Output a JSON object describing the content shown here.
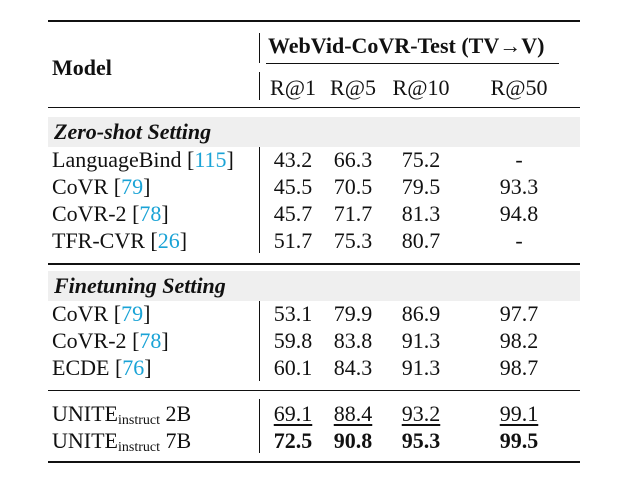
{
  "header": {
    "model_label": "Model",
    "benchmark": "WebVid-CoVR-Test (TV→V)",
    "metrics": [
      "R@1",
      "R@5",
      "R@10",
      "R@50"
    ]
  },
  "sections": [
    {
      "title": "Zero-shot Setting",
      "rows": [
        {
          "name": "LanguageBind",
          "cite": "115",
          "values": [
            "43.2",
            "66.3",
            "75.2",
            "-"
          ]
        },
        {
          "name": "CoVR",
          "cite": "79",
          "values": [
            "45.5",
            "70.5",
            "79.5",
            "93.3"
          ]
        },
        {
          "name": "CoVR-2",
          "cite": "78",
          "values": [
            "45.7",
            "71.7",
            "81.3",
            "94.8"
          ]
        },
        {
          "name": "TFR-CVR",
          "cite": "26",
          "values": [
            "51.7",
            "75.3",
            "80.7",
            "-"
          ]
        }
      ]
    },
    {
      "title": "Finetuning Setting",
      "rows": [
        {
          "name": "CoVR",
          "cite": "79",
          "values": [
            "53.1",
            "79.9",
            "86.9",
            "97.7"
          ]
        },
        {
          "name": "CoVR-2",
          "cite": "78",
          "values": [
            "59.8",
            "83.8",
            "91.3",
            "98.2"
          ]
        },
        {
          "name": "ECDE",
          "cite": "76",
          "values": [
            "60.1",
            "84.3",
            "91.3",
            "98.7"
          ]
        }
      ]
    }
  ],
  "ours": [
    {
      "name": "UNITE",
      "sub": "instruct",
      "size": "2B",
      "values": [
        "69.1",
        "88.4",
        "93.2",
        "99.1"
      ],
      "style": "underline"
    },
    {
      "name": "UNITE",
      "sub": "instruct",
      "size": "7B",
      "values": [
        "72.5",
        "90.8",
        "95.3",
        "99.5"
      ],
      "style": "bold"
    }
  ]
}
